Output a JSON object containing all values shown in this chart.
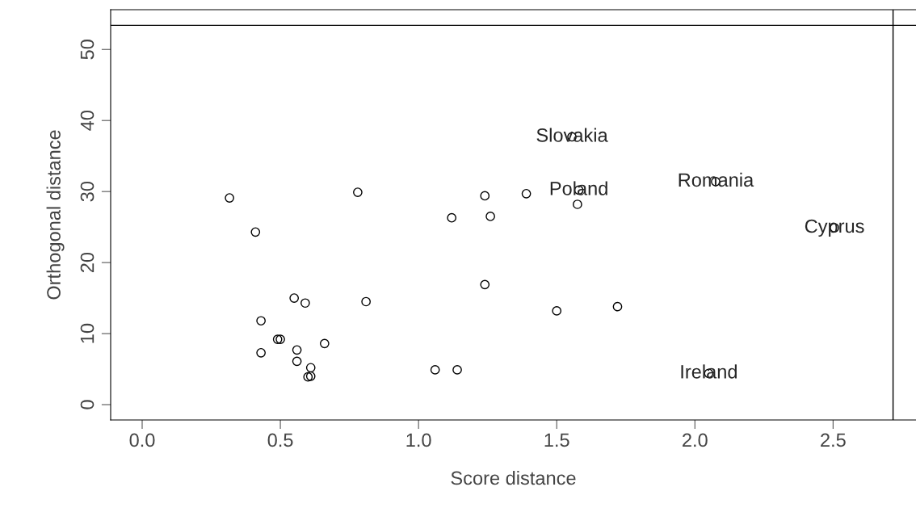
{
  "chart_data": {
    "type": "scatter",
    "xlabel": "Score distance",
    "ylabel": "Orthogonal distance",
    "x": [
      0.316,
      0.41,
      0.78,
      0.43,
      0.55,
      0.59,
      0.81,
      0.49,
      0.5,
      0.43,
      0.56,
      0.56,
      0.61,
      0.6,
      0.61,
      0.66,
      1.06,
      1.14,
      1.12,
      1.24,
      1.26,
      1.24,
      1.39,
      1.58,
      1.575,
      1.5,
      1.72,
      1.555,
      2.075,
      2.505,
      2.05
    ],
    "values": [
      29.1,
      24.3,
      29.9,
      11.8,
      15.0,
      14.3,
      14.5,
      9.2,
      9.2,
      7.3,
      7.7,
      6.1,
      5.2,
      3.9,
      4.0,
      8.6,
      4.9,
      4.9,
      26.3,
      29.4,
      26.5,
      16.9,
      29.7,
      30.2,
      28.2,
      13.2,
      13.8,
      37.7,
      31.4,
      24.9,
      4.4
    ],
    "color": "#000000",
    "marker": "circle",
    "grid": false,
    "xlim": [
      -0.114,
      2.8
    ],
    "ylim": [
      -2.16,
      55.6
    ],
    "xticks": [
      {
        "value": 0,
        "label": "0.0"
      },
      {
        "value": 0.5,
        "label": "0.5"
      },
      {
        "value": 1,
        "label": "1.0"
      },
      {
        "value": 1.5,
        "label": "1.5"
      },
      {
        "value": 2,
        "label": "2.0"
      },
      {
        "value": 2.5,
        "label": "2.5"
      }
    ],
    "yticks": [
      0,
      10,
      20,
      30,
      40,
      50
    ],
    "ref_lines": [
      {
        "axis": "x",
        "value": 2.717,
        "color": "#000000"
      },
      {
        "axis": "y",
        "value": 53.4,
        "color": "#000000"
      }
    ],
    "annotations": [
      {
        "text": "Slovakia",
        "x": 1.555,
        "y": 37.7
      },
      {
        "text": "Poland",
        "x": 1.58,
        "y": 30.2
      },
      {
        "text": "Romania",
        "x": 2.075,
        "y": 31.4
      },
      {
        "text": "Cyprus",
        "x": 2.505,
        "y": 24.9
      },
      {
        "text": "Ireland",
        "x": 2.05,
        "y": 4.4
      }
    ]
  }
}
